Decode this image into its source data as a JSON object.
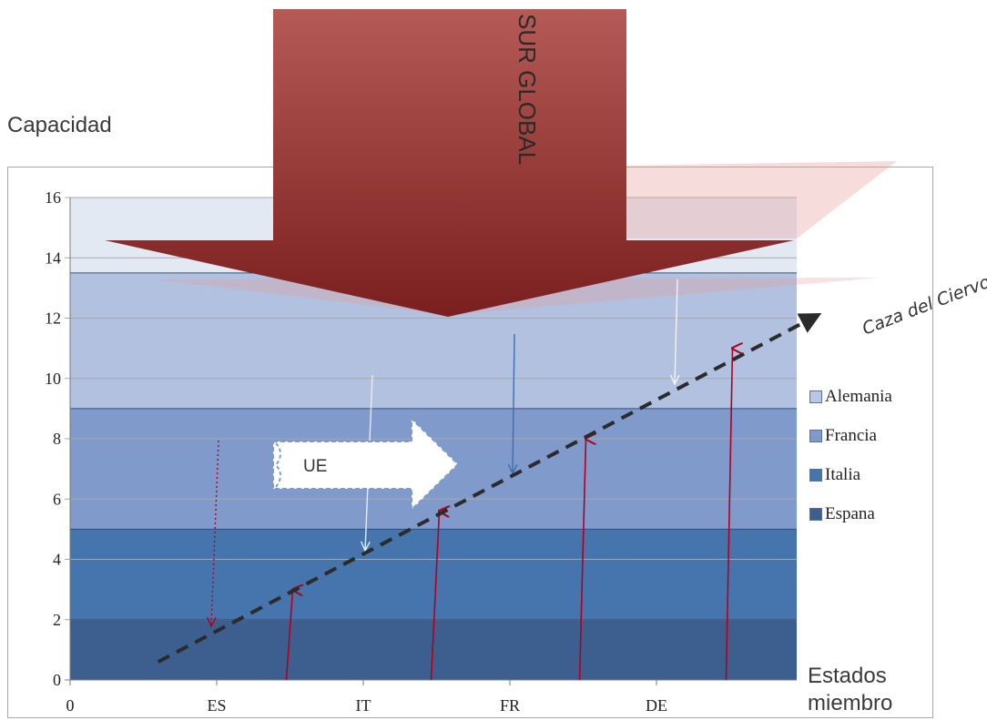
{
  "chart_data": {
    "type": "area",
    "ylabel": "Capacidad",
    "xlabel": "Estados miembro",
    "ylim": [
      0,
      16
    ],
    "y_ticks": [
      "0",
      "2",
      "4",
      "6",
      "8",
      "10",
      "12",
      "14",
      "16"
    ],
    "x_ticks": [
      "0",
      "ES",
      "IT",
      "FR",
      "DE"
    ],
    "grid": true,
    "legend_position": "right",
    "series": [
      {
        "name": "Alemania",
        "upper": 16,
        "color": "#e3e9f3"
      },
      {
        "name": "Francia",
        "upper": 13.5,
        "color": "#b1c1df"
      },
      {
        "name": "Italia",
        "upper": 9,
        "color": "#7f9acb"
      },
      {
        "name": "Espana",
        "upper": 5,
        "color": "#4674ad"
      }
    ],
    "base_band": {
      "upper": 2,
      "color": "#3d5f8f"
    },
    "stack_boundaries": [
      2,
      5,
      9,
      13.5,
      16
    ],
    "trend_line": {
      "label": "Caza del Ciervo",
      "from": [
        0.6,
        0.6
      ],
      "to": [
        5.1,
        12.1
      ]
    },
    "annotations": {
      "big_arrow": "SUR GLOBAL",
      "eu_arrow": "UE"
    },
    "red_arrows": [
      {
        "x": 1.5,
        "y": 3
      },
      {
        "x": 2.5,
        "y": 5.6
      },
      {
        "x": 3.5,
        "y": 8
      },
      {
        "x": 4.5,
        "y": 11
      }
    ]
  }
}
